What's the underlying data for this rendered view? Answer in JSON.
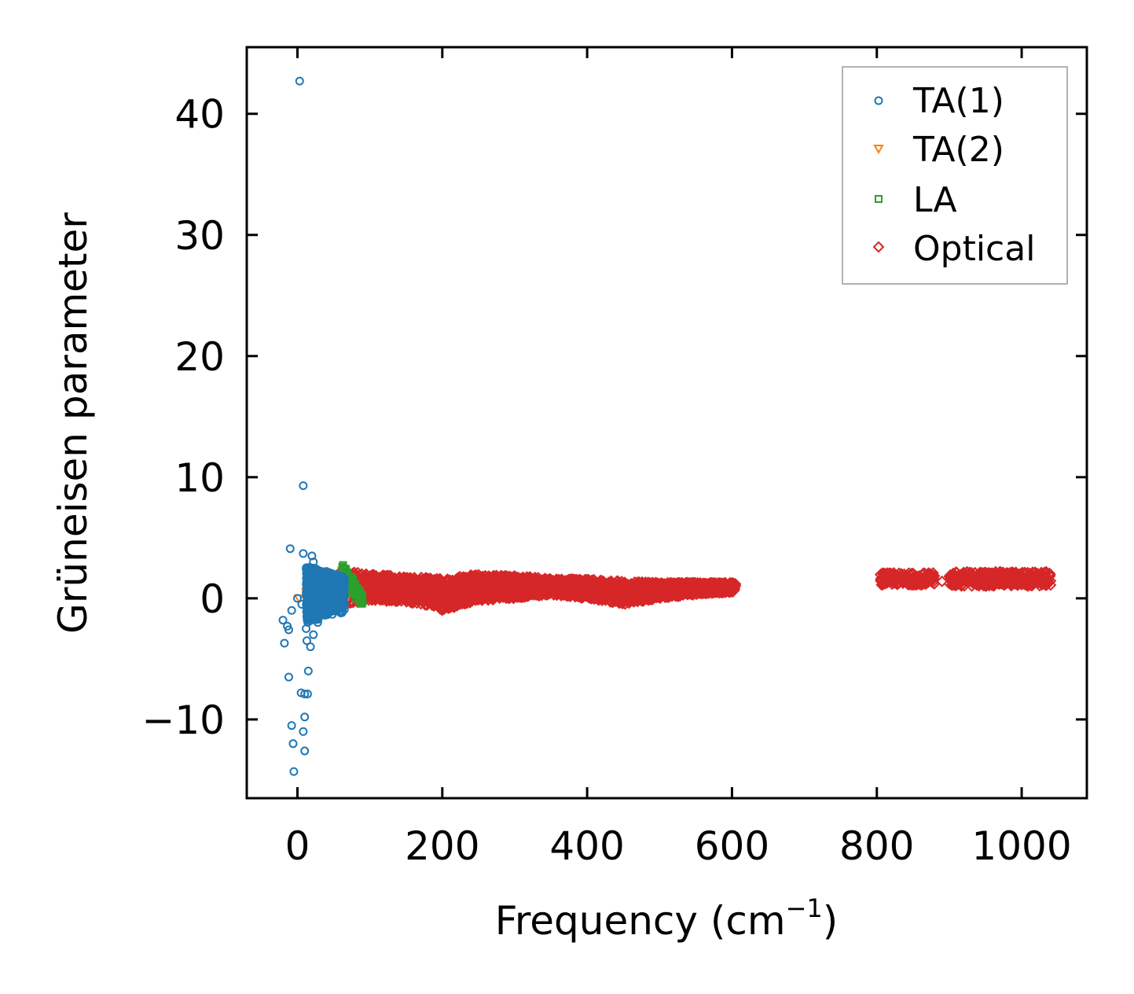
{
  "chart_data": {
    "type": "scatter",
    "title": "",
    "xlabel": "Frequency (cm",
    "xlabel_sup": "−1",
    "xlabel_suffix": ")",
    "ylabel": "Grüneisen parameter",
    "xlim": [
      -70,
      1090
    ],
    "ylim": [
      -16.5,
      45.5
    ],
    "xticks": [
      0,
      200,
      400,
      600,
      800,
      1000
    ],
    "xtick_labels": [
      "0",
      "200",
      "400",
      "600",
      "800",
      "1000"
    ],
    "yticks": [
      -10,
      0,
      10,
      20,
      30,
      40
    ],
    "ytick_labels": [
      "−10",
      "0",
      "10",
      "20",
      "30",
      "40"
    ],
    "legend_position": "top-right",
    "series": [
      {
        "name": "TA(1)",
        "marker": "circle-open",
        "color": "#1f77b4",
        "outliers": [
          [
            3,
            42.7
          ],
          [
            8,
            9.3
          ],
          [
            -10,
            4.1
          ],
          [
            8,
            3.7
          ],
          [
            20,
            3.5
          ],
          [
            22,
            3.0
          ],
          [
            -20,
            -1.8
          ],
          [
            -14,
            -2.3
          ],
          [
            -12,
            -2.6
          ],
          [
            -18,
            -3.7
          ],
          [
            -8,
            -1.0
          ],
          [
            -12,
            -6.5
          ],
          [
            15,
            -6.0
          ],
          [
            5,
            -7.8
          ],
          [
            10,
            -7.9
          ],
          [
            14,
            -7.9
          ],
          [
            10,
            -9.8
          ],
          [
            -8,
            -10.5
          ],
          [
            8,
            -11.0
          ],
          [
            -6,
            -12.0
          ],
          [
            10,
            -12.6
          ],
          [
            -5,
            -14.3
          ],
          [
            13,
            -3.5
          ],
          [
            18,
            -4.0
          ],
          [
            22,
            -3.0
          ],
          [
            28,
            -2.0
          ],
          [
            12,
            -2.5
          ],
          [
            16,
            -1.5
          ],
          [
            0,
            0.0
          ],
          [
            6,
            -0.5
          ]
        ],
        "band": {
          "x_range": [
            12,
            65
          ],
          "y_center": 0.5,
          "y_halfwidth": 1.6
        }
      },
      {
        "name": "TA(2)",
        "marker": "triangle-down-open",
        "color": "#ff7f0e",
        "points": [
          [
            2,
            0.0
          ],
          [
            12,
            0.5
          ],
          [
            20,
            1.5
          ],
          [
            30,
            0.8
          ],
          [
            40,
            0.3
          ],
          [
            55,
            1.2
          ],
          [
            62,
            2.3
          ],
          [
            66,
            1.0
          ],
          [
            70,
            0.2
          ]
        ]
      },
      {
        "name": "LA",
        "marker": "square-open",
        "color": "#2ca02c",
        "points": [
          [
            16,
            2.5
          ],
          [
            62,
            2.6
          ],
          [
            66,
            2.2
          ],
          [
            70,
            1.5
          ],
          [
            72,
            0.8
          ],
          [
            75,
            0.4
          ],
          [
            80,
            0.0
          ],
          [
            85,
            -0.2
          ],
          [
            88,
            0.3
          ],
          [
            90,
            -0.3
          ]
        ]
      },
      {
        "name": "Optical",
        "marker": "diamond-open",
        "color": "#d62728",
        "band_envelope": {
          "x": [
            60,
            100,
            150,
            180,
            200,
            250,
            300,
            350,
            400,
            450,
            500,
            550,
            600,
            605
          ],
          "y_upper": [
            2.3,
            2.0,
            1.8,
            1.7,
            1.7,
            2.0,
            1.9,
            1.6,
            1.6,
            1.4,
            1.3,
            1.3,
            1.3,
            1.2
          ],
          "y_lower": [
            -0.5,
            -0.2,
            -0.3,
            -0.6,
            -1.0,
            -0.2,
            0.0,
            0.3,
            0.0,
            -0.5,
            0.0,
            0.3,
            0.5,
            0.7
          ]
        },
        "band_segments": [
          {
            "x_range": [
              805,
              880
            ],
            "y_upper": 2.1,
            "y_lower": 1.1
          },
          {
            "x_range": [
              900,
              1040
            ],
            "y_upper": 2.2,
            "y_lower": 1.0
          }
        ],
        "outliers": [
          [
            890,
            1.4
          ]
        ]
      }
    ]
  }
}
